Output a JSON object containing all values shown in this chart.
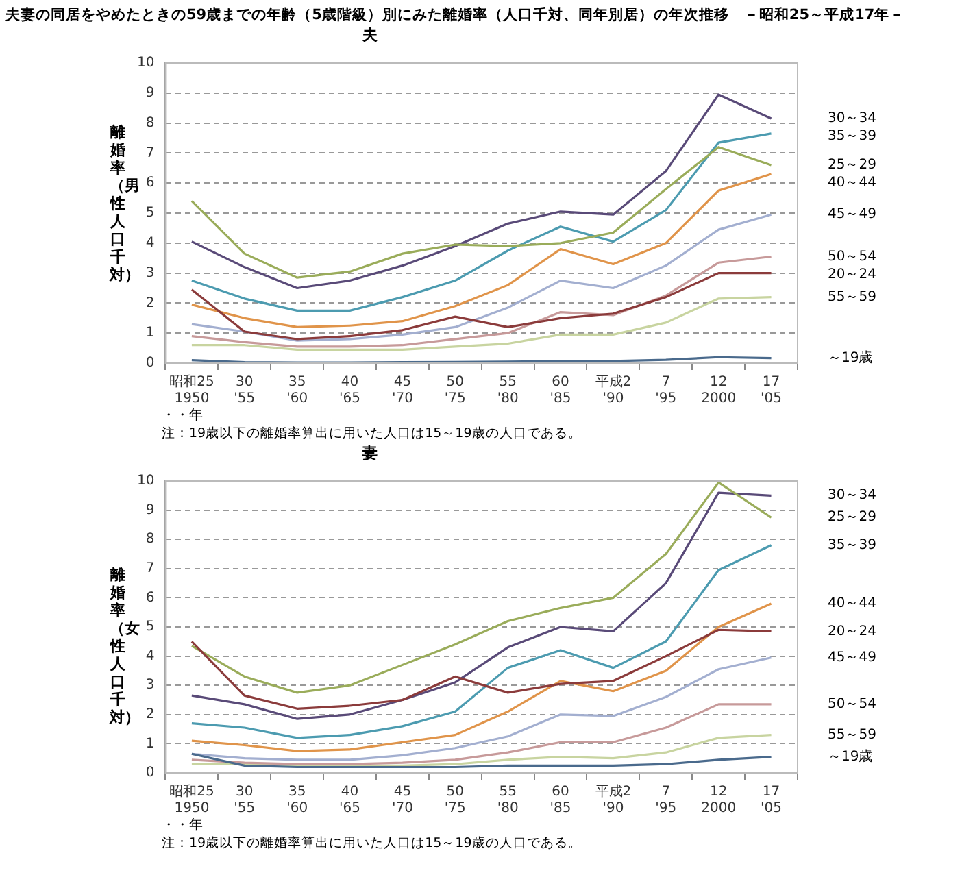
{
  "chart_data": [
    {
      "type": "line",
      "title": "夫妻の同居をやめたときの59歳までの年齢（5歳階級）別にみた離婚率（人口千対、同年別居）の年次推移　－昭和25～平成17年－",
      "subtitle": "夫",
      "xlabel": "・・年",
      "ylabel": "離婚率（男性人口千対）",
      "categories": [
        "昭和25\n1950",
        "30\n'55",
        "35\n'60",
        "40\n'65",
        "45\n'70",
        "50\n'75",
        "55\n'80",
        "60\n'85",
        "平成2\n'90",
        "7\n'95",
        "12\n2000",
        "17\n'05"
      ],
      "ylim": [
        0,
        10
      ],
      "yticks": [
        0,
        1,
        2,
        3,
        4,
        5,
        6,
        7,
        8,
        9,
        10
      ],
      "grid": "y",
      "legend": false,
      "marker": "none",
      "line_style": "solid",
      "annotations": [
        "注：19歳以下の離婚率算出に用いた人口は15～19歳の人口である。"
      ],
      "series": [
        {
          "name": "～19歳",
          "color": "#4a6a8c",
          "values": [
            0.1,
            0.03,
            0.02,
            0.02,
            0.03,
            0.04,
            0.05,
            0.06,
            0.07,
            0.11,
            0.2,
            0.17
          ]
        },
        {
          "name": "20～24",
          "color": "#8b3b3b",
          "values": [
            2.45,
            1.05,
            0.8,
            0.9,
            1.1,
            1.55,
            1.2,
            1.5,
            1.65,
            2.2,
            3.0,
            3.0
          ]
        },
        {
          "name": "25～29",
          "color": "#9aac5a",
          "values": [
            5.4,
            3.65,
            2.85,
            3.05,
            3.65,
            3.95,
            3.9,
            4.0,
            4.35,
            5.8,
            7.2,
            6.6
          ]
        },
        {
          "name": "30～34",
          "color": "#594a78",
          "values": [
            4.05,
            3.2,
            2.5,
            2.75,
            3.25,
            3.9,
            4.65,
            5.05,
            4.95,
            6.4,
            8.95,
            8.15
          ]
        },
        {
          "name": "35～39",
          "color": "#4c9bb0",
          "values": [
            2.75,
            2.15,
            1.75,
            1.75,
            2.2,
            2.75,
            3.75,
            4.55,
            4.05,
            5.1,
            7.35,
            7.65
          ]
        },
        {
          "name": "40～44",
          "color": "#e0944a",
          "values": [
            1.95,
            1.5,
            1.2,
            1.25,
            1.4,
            1.9,
            2.6,
            3.8,
            3.3,
            4.0,
            5.75,
            6.3
          ]
        },
        {
          "name": "45～49",
          "color": "#a3afd0",
          "values": [
            1.3,
            1.05,
            0.75,
            0.8,
            0.95,
            1.2,
            1.85,
            2.75,
            2.5,
            3.25,
            4.45,
            4.95
          ]
        },
        {
          "name": "50～54",
          "color": "#c79a9a",
          "values": [
            0.9,
            0.7,
            0.55,
            0.55,
            0.6,
            0.8,
            1.0,
            1.7,
            1.6,
            2.25,
            3.35,
            3.55
          ]
        },
        {
          "name": "55～59",
          "color": "#c8d4a0",
          "values": [
            0.6,
            0.6,
            0.45,
            0.45,
            0.45,
            0.55,
            0.65,
            0.95,
            0.95,
            1.35,
            2.15,
            2.2
          ]
        }
      ]
    },
    {
      "type": "line",
      "subtitle": "妻",
      "xlabel": "・・年",
      "ylabel": "離婚率（女性人口千対）",
      "categories": [
        "昭和25\n1950",
        "30\n'55",
        "35\n'60",
        "40\n'65",
        "45\n'70",
        "50\n'75",
        "55\n'80",
        "60\n'85",
        "平成2\n'90",
        "7\n'95",
        "12\n2000",
        "17\n'05"
      ],
      "ylim": [
        0,
        10
      ],
      "yticks": [
        0,
        1,
        2,
        3,
        4,
        5,
        6,
        7,
        8,
        9,
        10
      ],
      "grid": "y",
      "legend": false,
      "marker": "none",
      "line_style": "solid",
      "annotations": [
        "注：19歳以下の離婚率算出に用いた人口は15～19歳の人口である。"
      ],
      "series": [
        {
          "name": "～19歳",
          "color": "#4a6a8c",
          "values": [
            0.65,
            0.25,
            0.2,
            0.2,
            0.2,
            0.2,
            0.25,
            0.25,
            0.25,
            0.3,
            0.45,
            0.55
          ]
        },
        {
          "name": "20～24",
          "color": "#8b3b3b",
          "values": [
            4.5,
            2.65,
            2.2,
            2.3,
            2.5,
            3.3,
            2.75,
            3.05,
            3.15,
            4.0,
            4.9,
            4.85
          ]
        },
        {
          "name": "25～29",
          "color": "#9aac5a",
          "values": [
            4.35,
            3.3,
            2.75,
            3.0,
            3.7,
            4.4,
            5.2,
            5.65,
            6.0,
            7.5,
            9.95,
            8.75
          ]
        },
        {
          "name": "30～34",
          "color": "#594a78",
          "values": [
            2.65,
            2.35,
            1.85,
            2.0,
            2.5,
            3.1,
            4.3,
            5.0,
            4.85,
            6.5,
            9.6,
            9.5
          ]
        },
        {
          "name": "35～39",
          "color": "#4c9bb0",
          "values": [
            1.7,
            1.55,
            1.2,
            1.3,
            1.6,
            2.1,
            3.6,
            4.2,
            3.6,
            4.5,
            6.95,
            7.8
          ]
        },
        {
          "name": "40～44",
          "color": "#e0944a",
          "values": [
            1.1,
            0.95,
            0.75,
            0.8,
            1.05,
            1.3,
            2.1,
            3.15,
            2.8,
            3.5,
            5.0,
            5.8
          ]
        },
        {
          "name": "45～49",
          "color": "#a3afd0",
          "values": [
            0.65,
            0.5,
            0.45,
            0.45,
            0.6,
            0.85,
            1.25,
            2.0,
            1.95,
            2.6,
            3.55,
            3.95
          ]
        },
        {
          "name": "50～54",
          "color": "#c79a9a",
          "values": [
            0.45,
            0.35,
            0.3,
            0.3,
            0.35,
            0.45,
            0.7,
            1.05,
            1.05,
            1.55,
            2.35,
            2.35
          ]
        },
        {
          "name": "55～59",
          "color": "#c8d4a0",
          "values": [
            0.3,
            0.3,
            0.25,
            0.25,
            0.25,
            0.3,
            0.45,
            0.55,
            0.5,
            0.7,
            1.2,
            1.3
          ]
        }
      ]
    }
  ]
}
